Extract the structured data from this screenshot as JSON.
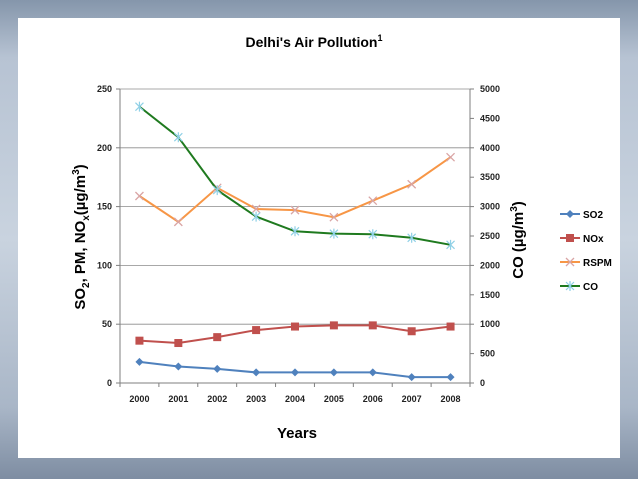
{
  "chart_data": {
    "type": "line",
    "title": "Delhi's Air Pollution",
    "title_superscript": "1",
    "xlabel": "Years",
    "ylabel_left": "SO2, PM, NOx(µg/m3)",
    "ylabel_left_parts": [
      "SO",
      "2",
      ", PM, NO",
      "x",
      "(µg/m",
      "3",
      ")"
    ],
    "ylabel_right": "CO (µg/m3)",
    "ylabel_right_parts": [
      "CO (µg/m",
      "3",
      ")"
    ],
    "categories": [
      "2000",
      "2001",
      "2002",
      "2003",
      "2004",
      "2005",
      "2006",
      "2007",
      "2008"
    ],
    "ylim_left": [
      0,
      250
    ],
    "yticks_left": [
      0,
      50,
      100,
      150,
      200,
      250
    ],
    "ylim_right": [
      0,
      5000
    ],
    "yticks_right": [
      0,
      500,
      1000,
      1500,
      2000,
      2500,
      3000,
      3500,
      4000,
      4500,
      5000
    ],
    "grid": true,
    "legend_position": "right",
    "series": [
      {
        "name": "SO2",
        "axis": "left",
        "color": "#4f81bd",
        "marker": "diamond",
        "values": [
          18,
          14,
          12,
          9,
          9,
          9,
          9,
          5,
          5
        ]
      },
      {
        "name": "NOx",
        "axis": "left",
        "color": "#c0504d",
        "marker": "square",
        "values": [
          36,
          34,
          39,
          45,
          48,
          49,
          49,
          44,
          48
        ]
      },
      {
        "name": "RSPM",
        "axis": "left",
        "color": "#f79646",
        "marker": "x",
        "values": [
          159,
          137,
          166,
          148,
          147,
          141,
          155,
          169,
          192
        ]
      },
      {
        "name": "CO",
        "axis": "right",
        "color": "#1f7a1f",
        "marker": "star",
        "values": [
          4700,
          4180,
          3280,
          2830,
          2580,
          2540,
          2530,
          2470,
          2350
        ]
      }
    ]
  }
}
